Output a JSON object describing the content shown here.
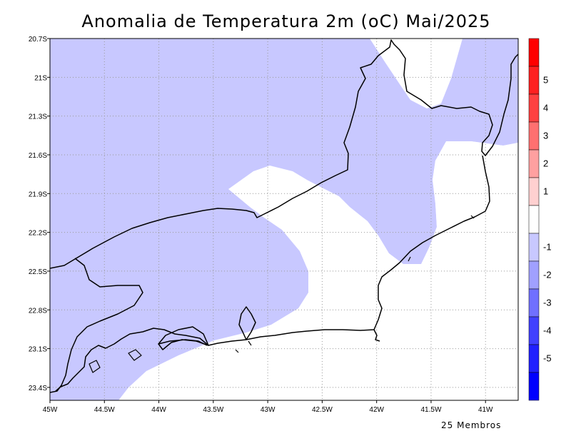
{
  "title": "Anomalia de Temperatura 2m (oC) Mai/2025",
  "footnote": "25 Membros",
  "map": {
    "region": "Rio de Janeiro state, Brazil",
    "lon_range": [
      -45.0,
      -40.7
    ],
    "lat_range": [
      -23.5,
      -20.7
    ],
    "lon_ticks": [
      "45W",
      "44.5W",
      "44W",
      "43.5W",
      "43W",
      "42.5W",
      "42W",
      "41.5W",
      "41W"
    ],
    "lat_ticks": [
      "20.7S",
      "21S",
      "21.3S",
      "21.6S",
      "21.9S",
      "22.2S",
      "22.5S",
      "22.8S",
      "23.1S",
      "23.4S"
    ],
    "grid": "dotted",
    "shaded_class": "-2 to -1"
  },
  "colorbar": {
    "labels": [
      "5",
      "4",
      "3",
      "2",
      "1",
      "-1",
      "-2",
      "-3",
      "-4",
      "-5"
    ],
    "colors": [
      "#ff0000",
      "#ff2020",
      "#ff4040",
      "#ff7070",
      "#ffa0a0",
      "#ffd0d0",
      "#ffffff",
      "#c8c8ff",
      "#a0a0ff",
      "#7070ff",
      "#4040ff",
      "#2020ff",
      "#0000ff"
    ]
  }
}
